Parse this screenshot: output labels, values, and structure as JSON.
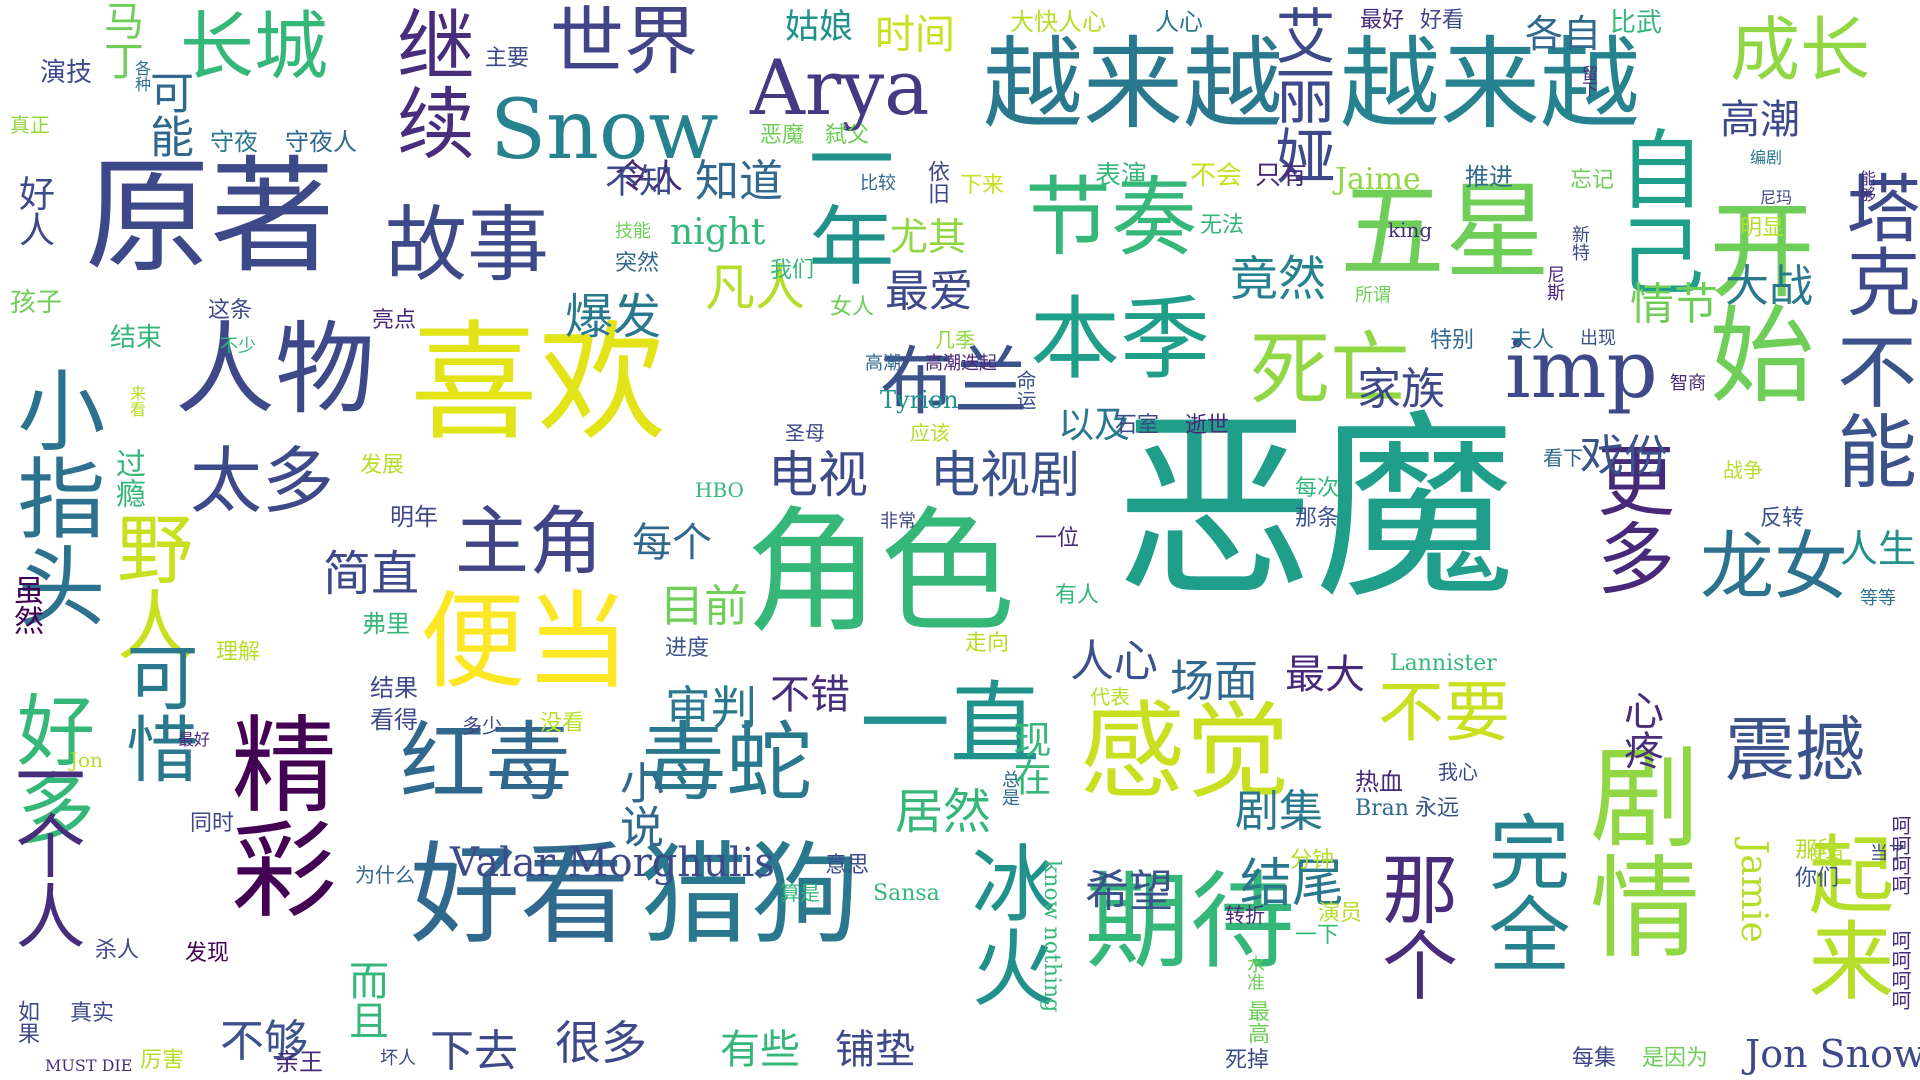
{
  "words": [
    {
      "id": "w1",
      "text": "恶魔",
      "color": "#1f9e89"
    },
    {
      "id": "w2",
      "text": "喜欢",
      "color": "#e2e418"
    },
    {
      "id": "w3",
      "text": "角色",
      "color": "#35b779"
    },
    {
      "id": "w4",
      "text": "原著",
      "color": "#3e4989"
    },
    {
      "id": "w5",
      "text": "越来越",
      "color": "#2a788e"
    },
    {
      "id": "w6",
      "text": "越来越",
      "color": "#26828e"
    },
    {
      "id": "w7",
      "text": "五星",
      "color": "#6ece58"
    },
    {
      "id": "w8",
      "text": "好看",
      "color": "#31688e"
    },
    {
      "id": "w9",
      "text": "猎狗",
      "color": "#2a788e"
    },
    {
      "id": "w10",
      "text": "期待",
      "color": "#35b779"
    },
    {
      "id": "w11",
      "text": "剧情",
      "color": "#90d743"
    },
    {
      "id": "w12",
      "text": "开始",
      "color": "#6ece58"
    },
    {
      "id": "w13",
      "text": "人物",
      "color": "#3e4989"
    },
    {
      "id": "w14",
      "text": "便当",
      "color": "#fde725"
    },
    {
      "id": "w15",
      "text": "感觉",
      "color": "#c8e020"
    },
    {
      "id": "w16",
      "text": "精彩",
      "color": "#440154"
    },
    {
      "id": "w17",
      "text": "一直",
      "color": "#21918c"
    },
    {
      "id": "w18",
      "text": "红毒",
      "color": "#31688e"
    },
    {
      "id": "w19",
      "text": "毒蛇",
      "color": "#2a788e"
    },
    {
      "id": "w20",
      "text": "故事",
      "color": "#3e4989"
    },
    {
      "id": "w21",
      "text": "节奏",
      "color": "#35b779"
    },
    {
      "id": "w22",
      "text": "本季",
      "color": "#1f9e89"
    },
    {
      "id": "w23",
      "text": "世界",
      "color": "#414487"
    },
    {
      "id": "w24",
      "text": "长城",
      "color": "#35b779"
    },
    {
      "id": "w25",
      "text": "Snow",
      "color": "#26828e"
    },
    {
      "id": "w26",
      "text": "Arya",
      "color": "#443983"
    },
    {
      "id": "w27",
      "text": "继续",
      "color": "#472d7b"
    },
    {
      "id": "w28",
      "text": "一年",
      "color": "#21918c"
    },
    {
      "id": "w29",
      "text": "成长",
      "color": "#90d743"
    },
    {
      "id": "w30",
      "text": "艾丽娅",
      "color": "#3e4989"
    },
    {
      "id": "w31",
      "text": "自己",
      "color": "#1f9e89"
    },
    {
      "id": "w32",
      "text": "塔克",
      "color": "#3e4989"
    },
    {
      "id": "w33",
      "text": "不能",
      "color": "#3b528b"
    },
    {
      "id": "w34",
      "text": "死亡",
      "color": "#90d743"
    },
    {
      "id": "w35",
      "text": "imp",
      "color": "#3e4989"
    },
    {
      "id": "w36",
      "text": "布兰",
      "color": "#3b528b"
    },
    {
      "id": "w37",
      "text": "太多",
      "color": "#3e4989"
    },
    {
      "id": "w38",
      "text": "主角",
      "color": "#414487"
    },
    {
      "id": "w39",
      "text": "野人",
      "color": "#c8e020"
    },
    {
      "id": "w40",
      "text": "可惜",
      "color": "#2a788e"
    },
    {
      "id": "w41",
      "text": "小指头",
      "color": "#2c728e"
    },
    {
      "id": "w42",
      "text": "好多",
      "color": "#35b779"
    },
    {
      "id": "w43",
      "text": "一个人",
      "color": "#472d7b"
    },
    {
      "id": "w44",
      "text": "更多",
      "color": "#482878"
    },
    {
      "id": "w45",
      "text": "龙女",
      "color": "#2c728e"
    },
    {
      "id": "w46",
      "text": "震撼",
      "color": "#3b528b"
    },
    {
      "id": "w47",
      "text": "起来",
      "color": "#b5de2b"
    },
    {
      "id": "w48",
      "text": "完全",
      "color": "#26828e"
    },
    {
      "id": "w49",
      "text": "那个",
      "color": "#472d7b"
    },
    {
      "id": "w50",
      "text": "冰火",
      "color": "#21918c"
    },
    {
      "id": "w51",
      "text": "不要",
      "color": "#c8e020"
    },
    {
      "id": "w52",
      "text": "电视",
      "color": "#3e4989"
    },
    {
      "id": "w53",
      "text": "电视剧",
      "color": "#3b528b"
    },
    {
      "id": "w54",
      "text": "马丁",
      "color": "#6ece58"
    },
    {
      "id": "w55",
      "text": "可能",
      "color": "#31688e"
    },
    {
      "id": "w56",
      "text": "姑娘",
      "color": "#21918c"
    },
    {
      "id": "w57",
      "text": "时间",
      "color": "#c8e020"
    },
    {
      "id": "w58",
      "text": "各自",
      "color": "#31688e"
    },
    {
      "id": "w59",
      "text": "比武",
      "color": "#35b779"
    },
    {
      "id": "w60",
      "text": "高潮",
      "color": "#3e4989"
    },
    {
      "id": "w61",
      "text": "Valar Morghulis",
      "color": "#3e4989"
    },
    {
      "id": "w62",
      "text": "Jon Snow",
      "color": "#3e4989"
    },
    {
      "id": "w63",
      "text": "Jaime",
      "color": "#90d743"
    },
    {
      "id": "w64",
      "text": "Jamie",
      "color": "#b5de2b"
    },
    {
      "id": "w65",
      "text": "night",
      "color": "#35b779"
    },
    {
      "id": "w66",
      "text": "Tyrion",
      "color": "#21918c"
    },
    {
      "id": "w67",
      "text": "Lannister",
      "color": "#35b779"
    },
    {
      "id": "w68",
      "text": "Sansa",
      "color": "#35b779"
    },
    {
      "id": "w69",
      "text": "Bran",
      "color": "#31688e"
    },
    {
      "id": "w70",
      "text": "HBO",
      "color": "#35b779"
    },
    {
      "id": "w71",
      "text": "king",
      "color": "#472d7b"
    },
    {
      "id": "w72",
      "text": "Jon",
      "color": "#b5de2b"
    },
    {
      "id": "w73",
      "text": "know nothing",
      "color": "#35b779"
    },
    {
      "id": "w74",
      "text": "MUST DIE",
      "color": "#472d7b"
    },
    {
      "id": "w75",
      "text": "凡人",
      "color": "#b5de2b"
    },
    {
      "id": "w76",
      "text": "爆发",
      "color": "#2a788e"
    },
    {
      "id": "w77",
      "text": "最爱",
      "color": "#3e4989"
    },
    {
      "id": "w78",
      "text": "尤其",
      "color": "#90d743"
    },
    {
      "id": "w79",
      "text": "竟然",
      "color": "#26828e"
    },
    {
      "id": "w80",
      "text": "家族",
      "color": "#3e4989"
    },
    {
      "id": "w81",
      "text": "大战",
      "color": "#2a788e"
    },
    {
      "id": "w82",
      "text": "情节",
      "color": "#6ece58"
    },
    {
      "id": "w83",
      "text": "戏份",
      "color": "#3b528b"
    },
    {
      "id": "w84",
      "text": "以及",
      "color": "#2a788e"
    },
    {
      "id": "w85",
      "text": "简直",
      "color": "#3e4989"
    },
    {
      "id": "w86",
      "text": "每个",
      "color": "#31688e"
    },
    {
      "id": "w87",
      "text": "目前",
      "color": "#6ece58"
    },
    {
      "id": "w88",
      "text": "审判",
      "color": "#2a788e"
    },
    {
      "id": "w89",
      "text": "不错",
      "color": "#472d7b"
    },
    {
      "id": "w90",
      "text": "人心",
      "color": "#3b528b"
    },
    {
      "id": "w91",
      "text": "现在",
      "color": "#35b779"
    },
    {
      "id": "w92",
      "text": "场面",
      "color": "#31688e"
    },
    {
      "id": "w93",
      "text": "最大",
      "color": "#482878"
    },
    {
      "id": "w94",
      "text": "剧集",
      "color": "#2a788e"
    },
    {
      "id": "w95",
      "text": "结尾",
      "color": "#2a788e"
    },
    {
      "id": "w96",
      "text": "希望",
      "color": "#3b528b"
    },
    {
      "id": "w97",
      "text": "居然",
      "color": "#35b779"
    },
    {
      "id": "w98",
      "text": "小说",
      "color": "#31688e"
    },
    {
      "id": "w99",
      "text": "不够",
      "color": "#3b528b"
    },
    {
      "id": "w100",
      "text": "而且",
      "color": "#35b779"
    },
    {
      "id": "w101",
      "text": "很多",
      "color": "#3e4989"
    },
    {
      "id": "w102",
      "text": "有些",
      "color": "#35b779"
    },
    {
      "id": "w103",
      "text": "铺垫",
      "color": "#3e4989"
    },
    {
      "id": "w104",
      "text": "下去",
      "color": "#3e4989"
    },
    {
      "id": "w105",
      "text": "人生",
      "color": "#21918c"
    },
    {
      "id": "w106",
      "text": "心疼",
      "color": "#472d7b"
    },
    {
      "id": "w107",
      "text": "令人",
      "color": "#482878"
    },
    {
      "id": "w108",
      "text": "不知",
      "color": "#3e4989"
    },
    {
      "id": "w109",
      "text": "知道",
      "color": "#31688e"
    },
    {
      "id": "w110",
      "text": "表演",
      "color": "#35b779"
    },
    {
      "id": "w111",
      "text": "不会",
      "color": "#c8e020"
    },
    {
      "id": "w112",
      "text": "只有",
      "color": "#482878"
    },
    {
      "id": "w113",
      "text": "推进",
      "color": "#31688e"
    },
    {
      "id": "w114",
      "text": "忘记",
      "color": "#6ece58"
    },
    {
      "id": "w115",
      "text": "最好",
      "color": "#482878"
    },
    {
      "id": "w116",
      "text": "好看",
      "color": "#3e4989"
    },
    {
      "id": "w117",
      "text": "大快人心",
      "color": "#b5de2b"
    },
    {
      "id": "w118",
      "text": "人心",
      "color": "#2a788e"
    },
    {
      "id": "w119",
      "text": "守夜",
      "color": "#2a788e"
    },
    {
      "id": "w120",
      "text": "守夜人",
      "color": "#31688e"
    },
    {
      "id": "w121",
      "text": "恶魔",
      "color": "#6ece58"
    },
    {
      "id": "w122",
      "text": "弑父",
      "color": "#6ece58"
    },
    {
      "id": "w123",
      "text": "依旧",
      "color": "#3e4989"
    },
    {
      "id": "w124",
      "text": "比较",
      "color": "#31688e"
    },
    {
      "id": "w125",
      "text": "下来",
      "color": "#c8e020"
    },
    {
      "id": "w126",
      "text": "主要",
      "color": "#3e4989"
    },
    {
      "id": "w127",
      "text": "演技",
      "color": "#3e4989"
    },
    {
      "id": "w128",
      "text": "各种",
      "color": "#2c728e"
    },
    {
      "id": "w129",
      "text": "真正",
      "color": "#90d743"
    },
    {
      "id": "w130",
      "text": "好人",
      "color": "#3e4989"
    },
    {
      "id": "w131",
      "text": "孩子",
      "color": "#6ece58"
    },
    {
      "id": "w132",
      "text": "突然",
      "color": "#31688e"
    },
    {
      "id": "w133",
      "text": "技能",
      "color": "#6ece58"
    },
    {
      "id": "w134",
      "text": "我们",
      "color": "#35b779"
    },
    {
      "id": "w135",
      "text": "女人",
      "color": "#6ece58"
    },
    {
      "id": "w136",
      "text": "无法",
      "color": "#35b779"
    },
    {
      "id": "w137",
      "text": "所谓",
      "color": "#6ece58"
    },
    {
      "id": "w138",
      "text": "特别",
      "color": "#31688e"
    },
    {
      "id": "w139",
      "text": "夫人",
      "color": "#2c728e"
    },
    {
      "id": "w140",
      "text": "出现",
      "color": "#3b528b"
    },
    {
      "id": "w141",
      "text": "结束",
      "color": "#35b779"
    },
    {
      "id": "w142",
      "text": "这条",
      "color": "#3e4989"
    },
    {
      "id": "w143",
      "text": "不少",
      "color": "#35b779"
    },
    {
      "id": "w144",
      "text": "亮点",
      "color": "#482878"
    },
    {
      "id": "w145",
      "text": "几季",
      "color": "#90d743"
    },
    {
      "id": "w146",
      "text": "高潮",
      "color": "#31688e"
    },
    {
      "id": "w147",
      "text": "高潮迭起",
      "color": "#482878"
    },
    {
      "id": "w148",
      "text": "命运",
      "color": "#3b528b"
    },
    {
      "id": "w149",
      "text": "石室",
      "color": "#3e4989"
    },
    {
      "id": "w150",
      "text": "逝世",
      "color": "#482878"
    },
    {
      "id": "w151",
      "text": "圣母",
      "color": "#3e4989"
    },
    {
      "id": "w152",
      "text": "应该",
      "color": "#b5de2b"
    },
    {
      "id": "w153",
      "text": "看下",
      "color": "#31688e"
    },
    {
      "id": "w154",
      "text": "智商",
      "color": "#482878"
    },
    {
      "id": "w155",
      "text": "战争",
      "color": "#b5de2b"
    },
    {
      "id": "w156",
      "text": "反转",
      "color": "#3b528b"
    },
    {
      "id": "w157",
      "text": "等等",
      "color": "#2c728e"
    },
    {
      "id": "w158",
      "text": "发展",
      "color": "#b5de2b"
    },
    {
      "id": "w159",
      "text": "过瘾",
      "color": "#35b779"
    },
    {
      "id": "w160",
      "text": "明年",
      "color": "#3e4989"
    },
    {
      "id": "w161",
      "text": "非常",
      "color": "#3e4989"
    },
    {
      "id": "w162",
      "text": "一位",
      "color": "#482878"
    },
    {
      "id": "w163",
      "text": "每次",
      "color": "#35b779"
    },
    {
      "id": "w164",
      "text": "那条",
      "color": "#3b528b"
    },
    {
      "id": "w165",
      "text": "有人",
      "color": "#35b779"
    },
    {
      "id": "w166",
      "text": "虽然",
      "color": "#440154"
    },
    {
      "id": "w167",
      "text": "弗里",
      "color": "#35b779"
    },
    {
      "id": "w168",
      "text": "理解",
      "color": "#b5de2b"
    },
    {
      "id": "w169",
      "text": "进度",
      "color": "#3b528b"
    },
    {
      "id": "w170",
      "text": "走向",
      "color": "#b5de2b"
    },
    {
      "id": "w171",
      "text": "结果",
      "color": "#3e4989"
    },
    {
      "id": "w172",
      "text": "看得",
      "color": "#3e4989"
    },
    {
      "id": "w173",
      "text": "多少",
      "color": "#3e4989"
    },
    {
      "id": "w174",
      "text": "没看",
      "color": "#b5de2b"
    },
    {
      "id": "w175",
      "text": "代表",
      "color": "#b5de2b"
    },
    {
      "id": "w176",
      "text": "最好",
      "color": "#482878"
    },
    {
      "id": "w177",
      "text": "热血",
      "color": "#482878"
    },
    {
      "id": "w178",
      "text": "我心",
      "color": "#3e4989"
    },
    {
      "id": "w179",
      "text": "总是",
      "color": "#31688e"
    },
    {
      "id": "w180",
      "text": "永远",
      "color": "#3b528b"
    },
    {
      "id": "w181",
      "text": "同时",
      "color": "#3e4989"
    },
    {
      "id": "w182",
      "text": "为什么",
      "color": "#31688e"
    },
    {
      "id": "w183",
      "text": "意思",
      "color": "#3e4989"
    },
    {
      "id": "w184",
      "text": "分钟",
      "color": "#b5de2b"
    },
    {
      "id": "w185",
      "text": "算是",
      "color": "#35b779"
    },
    {
      "id": "w186",
      "text": "转折",
      "color": "#482878"
    },
    {
      "id": "w187",
      "text": "演员",
      "color": "#b5de2b"
    },
    {
      "id": "w188",
      "text": "一下",
      "color": "#35b779"
    },
    {
      "id": "w189",
      "text": "那段",
      "color": "#b5de2b"
    },
    {
      "id": "w190",
      "text": "你们",
      "color": "#3b528b"
    },
    {
      "id": "w191",
      "text": "杀人",
      "color": "#3e4989"
    },
    {
      "id": "w192",
      "text": "发现",
      "color": "#440154"
    },
    {
      "id": "w193",
      "text": "真实",
      "color": "#3e4989"
    },
    {
      "id": "w194",
      "text": "厉害",
      "color": "#b5de2b"
    },
    {
      "id": "w195",
      "text": "亲王",
      "color": "#482878"
    },
    {
      "id": "w196",
      "text": "坏人",
      "color": "#3e4989"
    },
    {
      "id": "w197",
      "text": "如果",
      "color": "#3e4989"
    },
    {
      "id": "w198",
      "text": "最高",
      "color": "#6ece58"
    },
    {
      "id": "w199",
      "text": "水准",
      "color": "#6ece58"
    },
    {
      "id": "w200",
      "text": "死掉",
      "color": "#3e4989"
    },
    {
      "id": "w201",
      "text": "每集",
      "color": "#3e4989"
    },
    {
      "id": "w202",
      "text": "是因为",
      "color": "#6ece58"
    },
    {
      "id": "w203",
      "text": "当了",
      "color": "#3e4989"
    },
    {
      "id": "w204",
      "text": "便当",
      "color": "#b5de2b"
    },
    {
      "id": "w205",
      "text": "编剧",
      "color": "#2a788e"
    },
    {
      "id": "w206",
      "text": "明显",
      "color": "#b5de2b"
    },
    {
      "id": "w207",
      "text": "新特",
      "color": "#3e4989"
    },
    {
      "id": "w208",
      "text": "尼斯",
      "color": "#482878"
    },
    {
      "id": "w209",
      "text": "尼玛",
      "color": "#3e4989"
    },
    {
      "id": "w210",
      "text": "能够",
      "color": "#472d7b"
    },
    {
      "id": "w211",
      "text": "留下",
      "color": "#472d7b"
    },
    {
      "id": "w212",
      "text": "来看",
      "color": "#b5de2b"
    },
    {
      "id": "w213",
      "text": "呵呵呵呵",
      "color": "#472d7b"
    },
    {
      "id": "w214",
      "text": "呵呵呵呵",
      "color": "#472d7b"
    }
  ]
}
